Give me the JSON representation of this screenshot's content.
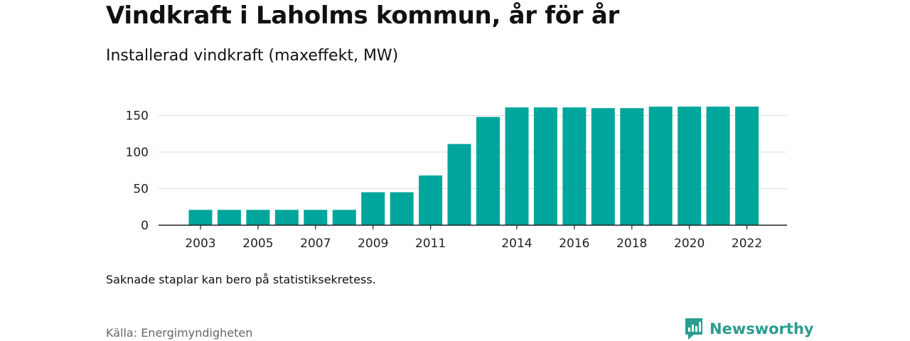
{
  "title": "Vindkraft i Laholms kommun, år för år",
  "subtitle": "Installerad vindkraft (maxeffekt, MW)",
  "note": "Saknade staplar kan bero på statistiksekretess.",
  "source": "Källa: Energimyndigheten",
  "brand": {
    "name": "Newsworthy",
    "icon": "newsworthy-logo-icon",
    "color": "#2a9d8f"
  },
  "chart_data": {
    "type": "bar",
    "categories": [
      "2003",
      "2004",
      "2005",
      "2006",
      "2007",
      "2008",
      "2009",
      "2010",
      "2011",
      "2012",
      "2013",
      "2014",
      "2015",
      "2016",
      "2017",
      "2018",
      "2019",
      "2020",
      "2021",
      "2022"
    ],
    "values": [
      21,
      21,
      21,
      21,
      21,
      21,
      45,
      45,
      68,
      111,
      148,
      161,
      161,
      161,
      160,
      160,
      162,
      162,
      162,
      162
    ],
    "x_tick_labels": [
      "2003",
      "2005",
      "2007",
      "2009",
      "2011",
      "2014",
      "2016",
      "2018",
      "2020",
      "2022"
    ],
    "y_ticks": [
      0,
      50,
      100,
      150
    ],
    "ylim": [
      0,
      170
    ],
    "grid": true,
    "bar_color": "#00a59b"
  }
}
